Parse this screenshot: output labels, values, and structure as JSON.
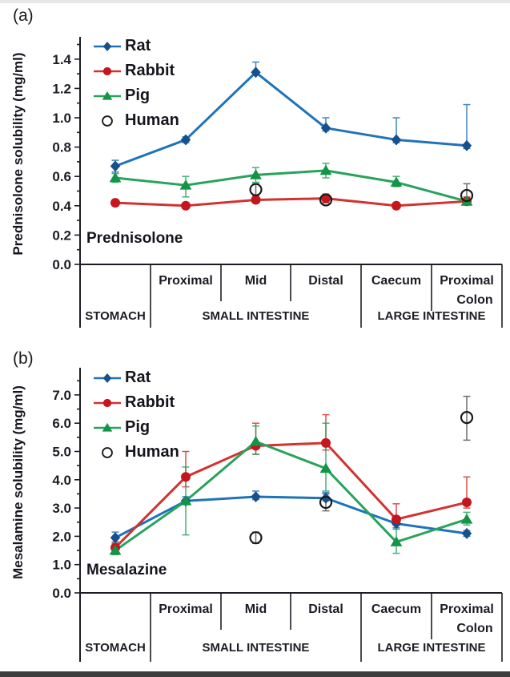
{
  "x_axis": {
    "regions": [
      "",
      "Proximal",
      "Mid",
      "Distal",
      "Caecum",
      "Proximal\nColon"
    ],
    "groups": [
      {
        "label": "STOMACH",
        "span": [
          0,
          1
        ]
      },
      {
        "label": "SMALL INTESTINE",
        "span": [
          1,
          4
        ]
      },
      {
        "label": "LARGE INTESTINE",
        "span": [
          4,
          6
        ]
      }
    ]
  },
  "chart_data": [
    {
      "id": "a",
      "type": "line",
      "panel_label": "(a)",
      "ylabel": "Prednisolone solubility (mg/ml)",
      "annotation": "Prednisolone",
      "ylim": [
        0,
        1.55
      ],
      "ytick_values": [
        0.0,
        0.2,
        0.4,
        0.6,
        0.8,
        1.0,
        1.2,
        1.4
      ],
      "ytick_labels": [
        "0.0",
        "0.2",
        "0.4",
        "0.6",
        "0.8",
        "1.0",
        "1.2",
        "1.4"
      ],
      "yminor_step": 0.1,
      "categories": [
        "Stomach",
        "Proximal Small Intestine",
        "Mid Small Intestine",
        "Distal Small Intestine",
        "Caecum",
        "Proximal Colon"
      ],
      "series": [
        {
          "name": "Rat",
          "marker": "diamond",
          "color": "#1e73b9",
          "marker_color": "#17508c",
          "connect": true,
          "values": [
            0.67,
            0.85,
            1.31,
            0.93,
            0.85,
            0.81
          ],
          "err_up": [
            0.04,
            0.02,
            0.07,
            0.07,
            0.15,
            0.28
          ],
          "err_down": [
            0.04,
            0.02,
            0.02,
            0.02,
            0.02,
            0.02
          ]
        },
        {
          "name": "Rabbit",
          "marker": "circle",
          "color": "#d23230",
          "marker_color": "#c4161c",
          "connect": true,
          "values": [
            0.42,
            0.4,
            0.44,
            0.45,
            0.4,
            0.43
          ],
          "err_up": [
            0.02,
            0.02,
            0.03,
            0.03,
            0.02,
            0.03
          ],
          "err_down": [
            0.02,
            0.02,
            0.02,
            0.02,
            0.02,
            0.02
          ]
        },
        {
          "name": "Pig",
          "marker": "triangle",
          "color": "#28a35c",
          "marker_color": "#149447",
          "connect": true,
          "values": [
            0.59,
            0.54,
            0.61,
            0.64,
            0.56,
            0.43
          ],
          "err_up": [
            0.03,
            0.06,
            0.05,
            0.05,
            0.04,
            0.02
          ],
          "err_down": [
            0.03,
            0.08,
            0.05,
            0.05,
            0.03,
            0.02
          ]
        },
        {
          "name": "Human",
          "marker": "open-circle",
          "color": "#1a1a1a",
          "marker_color": "#1a1a1a",
          "connect": false,
          "values": [
            null,
            null,
            0.51,
            0.44,
            null,
            0.47
          ],
          "err_up": [
            null,
            null,
            0.04,
            0.02,
            null,
            0.08
          ],
          "err_down": [
            null,
            null,
            0.04,
            0.02,
            null,
            0.03
          ]
        }
      ]
    },
    {
      "id": "b",
      "type": "line",
      "panel_label": "(b)",
      "ylabel": "Mesalamine solubility (mg/ml)",
      "annotation": "Mesalazine",
      "ylim": [
        0,
        7.6
      ],
      "ytick_values": [
        0.0,
        1.0,
        2.0,
        3.0,
        4.0,
        5.0,
        6.0,
        7.0
      ],
      "ytick_labels": [
        "0.0",
        "1.0",
        "2.0",
        "3.0",
        "4.0",
        "5.0",
        "6.0",
        "7.0"
      ],
      "yminor_step": 0.5,
      "categories": [
        "Stomach",
        "Proximal Small Intestine",
        "Mid Small Intestine",
        "Distal Small Intestine",
        "Caecum",
        "Proximal Colon"
      ],
      "series": [
        {
          "name": "Rat",
          "marker": "diamond",
          "color": "#1e73b9",
          "marker_color": "#17508c",
          "connect": true,
          "values": [
            1.95,
            3.25,
            3.4,
            3.35,
            2.45,
            2.1
          ],
          "err_up": [
            0.2,
            0.15,
            0.2,
            0.2,
            0.2,
            0.1
          ],
          "err_down": [
            0.15,
            0.1,
            0.1,
            0.1,
            0.15,
            0.1
          ]
        },
        {
          "name": "Rabbit",
          "marker": "circle",
          "color": "#d23230",
          "marker_color": "#c4161c",
          "connect": true,
          "values": [
            1.6,
            4.1,
            5.2,
            5.3,
            2.6,
            3.2
          ],
          "err_up": [
            0.15,
            0.9,
            0.8,
            1.0,
            0.55,
            0.9
          ],
          "err_down": [
            0.1,
            0.35,
            0.3,
            0.25,
            0.2,
            0.2
          ]
        },
        {
          "name": "Pig",
          "marker": "triangle",
          "color": "#28a35c",
          "marker_color": "#149447",
          "connect": true,
          "values": [
            1.5,
            3.25,
            5.35,
            4.4,
            1.8,
            2.6
          ],
          "err_up": [
            0.15,
            1.2,
            0.55,
            1.6,
            0.45,
            0.25
          ],
          "err_down": [
            0.15,
            1.2,
            0.45,
            0.8,
            0.4,
            0.2
          ]
        },
        {
          "name": "Human",
          "marker": "open-circle",
          "color": "#1a1a1a",
          "marker_color": "#1a1a1a",
          "connect": false,
          "values": [
            null,
            null,
            1.95,
            3.2,
            null,
            6.2
          ],
          "err_up": [
            null,
            null,
            0.2,
            0.3,
            null,
            0.75
          ],
          "err_down": [
            null,
            null,
            0.2,
            0.3,
            null,
            0.8
          ]
        }
      ]
    }
  ]
}
